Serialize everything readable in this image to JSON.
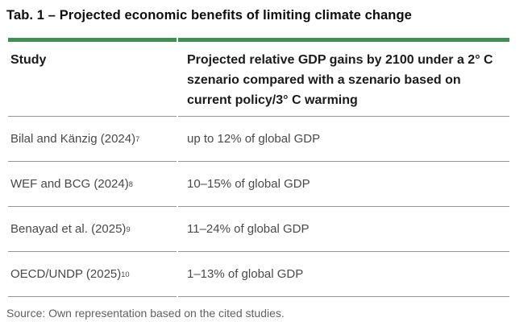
{
  "page": {
    "title": "Tab. 1 – Projected economic benefits of limiting climate change",
    "source": "Source: Own representation based on the cited studies."
  },
  "table": {
    "columns": [
      {
        "label": "Study"
      },
      {
        "label": "Projected relative GDP gains by 2100 under a 2° C szenario compared with a szenario based on current policy/3° C warming"
      }
    ],
    "rows": [
      {
        "study": "Bilal and Känzig (2024)",
        "footnote": "7",
        "value": "up to 12% of global GDP"
      },
      {
        "study": "WEF and BCG (2024)",
        "footnote": "8",
        "value": "10–15% of global GDP"
      },
      {
        "study": "Benayad et al. (2025)",
        "footnote": "9",
        "value": "11–24% of global GDP"
      },
      {
        "study": "OECD/UNDP (2025)",
        "footnote": "10",
        "value": "1–13% of global GDP"
      }
    ]
  },
  "colors": {
    "accent_green": "#3f9150",
    "divider_gray": "#979797",
    "body_text": "#47494c"
  }
}
